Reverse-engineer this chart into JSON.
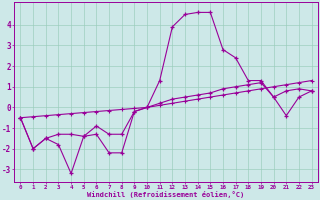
{
  "title": "",
  "xlabel": "Windchill (Refroidissement éolien,°C)",
  "ylabel": "",
  "background_color": "#cde8e8",
  "grid_color": "#99ccbb",
  "line_color": "#990099",
  "xlim": [
    -0.5,
    23.5
  ],
  "ylim": [
    -3.6,
    5.1
  ],
  "xticks": [
    0,
    1,
    2,
    3,
    4,
    5,
    6,
    7,
    8,
    9,
    10,
    11,
    12,
    13,
    14,
    15,
    16,
    17,
    18,
    19,
    20,
    21,
    22,
    23
  ],
  "yticks": [
    -3,
    -2,
    -1,
    0,
    1,
    2,
    3,
    4
  ],
  "hours": [
    0,
    1,
    2,
    3,
    4,
    5,
    6,
    7,
    8,
    9,
    10,
    11,
    12,
    13,
    14,
    15,
    16,
    17,
    18,
    19,
    20,
    21,
    22,
    23
  ],
  "line1": [
    -0.5,
    -2.0,
    -1.5,
    -1.8,
    -3.2,
    -1.4,
    -1.3,
    -2.2,
    -2.2,
    -0.2,
    0.0,
    1.3,
    3.9,
    4.5,
    4.6,
    4.6,
    2.8,
    2.4,
    1.3,
    1.3,
    0.5,
    -0.4,
    0.5,
    0.8
  ],
  "line2": [
    -0.5,
    -2.0,
    -1.5,
    -1.3,
    -1.3,
    -1.4,
    -0.9,
    -1.3,
    -1.3,
    -0.2,
    0.0,
    0.2,
    0.4,
    0.5,
    0.6,
    0.7,
    0.9,
    1.0,
    1.1,
    1.2,
    0.5,
    0.8,
    0.9,
    0.8
  ],
  "line3": [
    -0.5,
    -0.45,
    -0.4,
    -0.35,
    -0.3,
    -0.25,
    -0.2,
    -0.15,
    -0.1,
    -0.05,
    0.0,
    0.1,
    0.2,
    0.3,
    0.4,
    0.5,
    0.6,
    0.7,
    0.8,
    0.9,
    1.0,
    1.1,
    1.2,
    1.3
  ]
}
